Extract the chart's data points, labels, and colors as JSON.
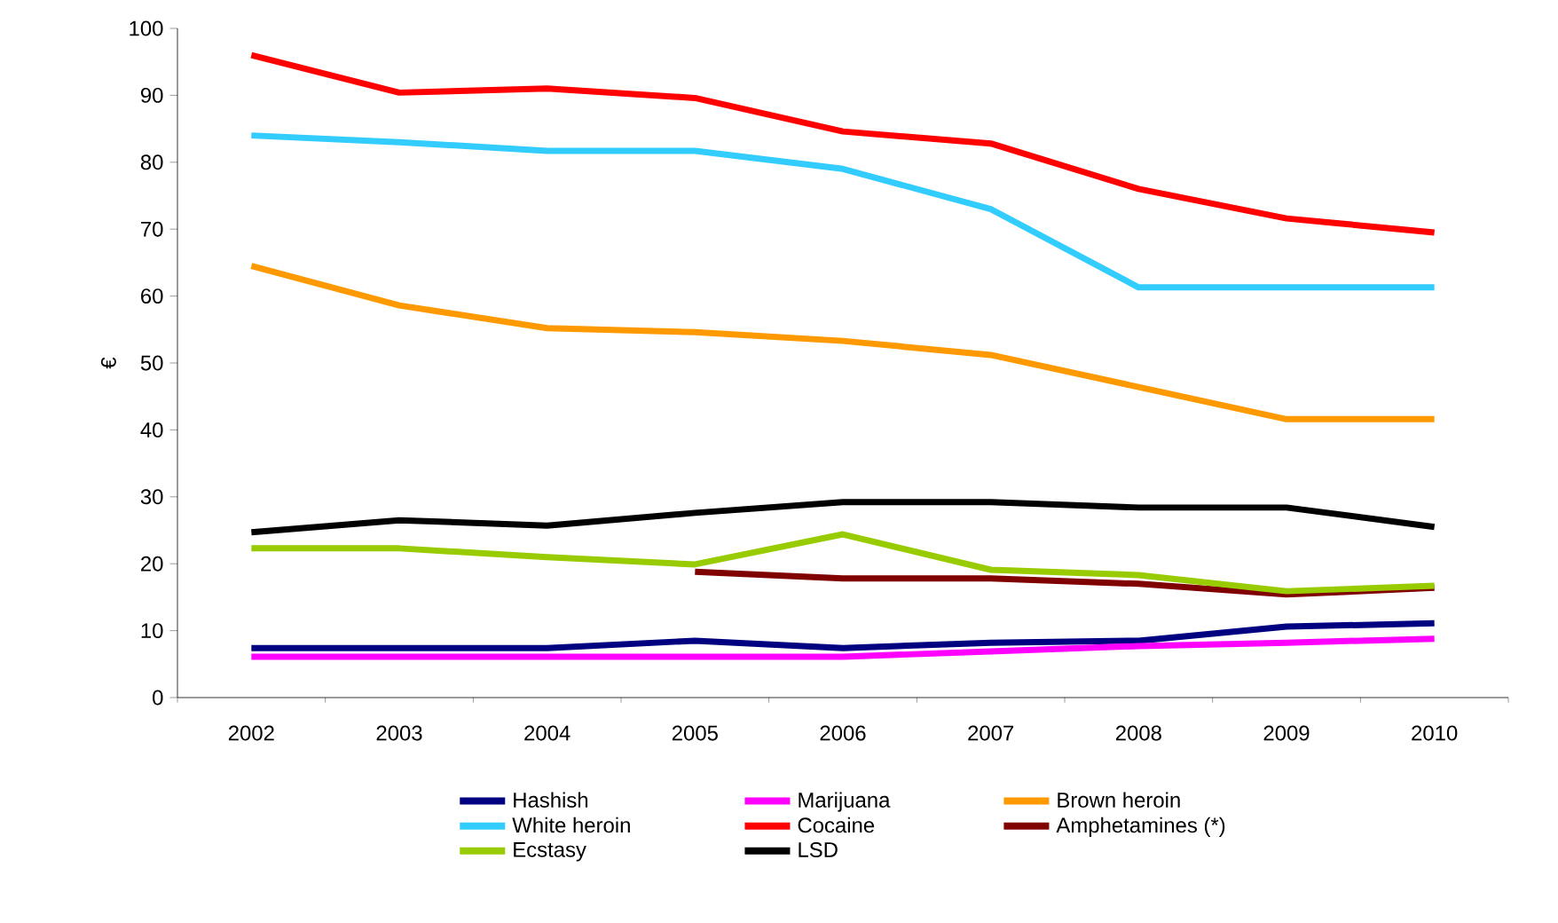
{
  "chart_data": {
    "type": "line",
    "ylabel": "€",
    "categories": [
      "2002",
      "2003",
      "2004",
      "2005",
      "2006",
      "2007",
      "2008",
      "2009",
      "2010"
    ],
    "series": [
      {
        "name": "Hashish",
        "color": "#000080",
        "values": [
          7.4,
          7.4,
          7.4,
          8.5,
          7.4,
          8.2,
          8.5,
          10.6,
          11.1
        ]
      },
      {
        "name": "Marijuana",
        "color": "#ff00ff",
        "values": [
          6.1,
          6.1,
          6.1,
          6.1,
          6.1,
          6.9,
          7.7,
          8.2,
          8.8
        ]
      },
      {
        "name": "Brown heroin",
        "color": "#ff9900",
        "values": [
          64.5,
          58.6,
          55.2,
          54.6,
          53.3,
          51.2,
          46.4,
          41.6,
          41.6
        ]
      },
      {
        "name": "White heroin",
        "color": "#33ccff",
        "values": [
          84,
          83,
          81.7,
          81.7,
          79,
          73,
          61.3,
          61.3,
          61.3
        ]
      },
      {
        "name": "Cocaine",
        "color": "#ff0000",
        "values": [
          96,
          90.4,
          91,
          89.6,
          84.6,
          82.8,
          76,
          71.6,
          69.5
        ]
      },
      {
        "name": "Amphetamines (*)",
        "color": "#800000",
        "values": [
          null,
          null,
          null,
          18.8,
          17.8,
          17.8,
          17,
          15.4,
          16.4
        ]
      },
      {
        "name": "Ecstasy",
        "color": "#99cc00",
        "values": [
          22.3,
          22.3,
          21,
          19.9,
          24.4,
          19.1,
          18.3,
          15.9,
          16.7
        ]
      },
      {
        "name": "LSD",
        "color": "#000000",
        "values": [
          24.7,
          26.5,
          25.7,
          27.6,
          29.2,
          29.2,
          28.4,
          28.4,
          25.5
        ]
      }
    ],
    "ylim": [
      0,
      100
    ],
    "yticks": [
      0,
      10,
      20,
      30,
      40,
      50,
      60,
      70,
      80,
      90,
      100
    ],
    "grid": false,
    "legend": "bottom",
    "marker": "none",
    "line_style": "solid"
  }
}
